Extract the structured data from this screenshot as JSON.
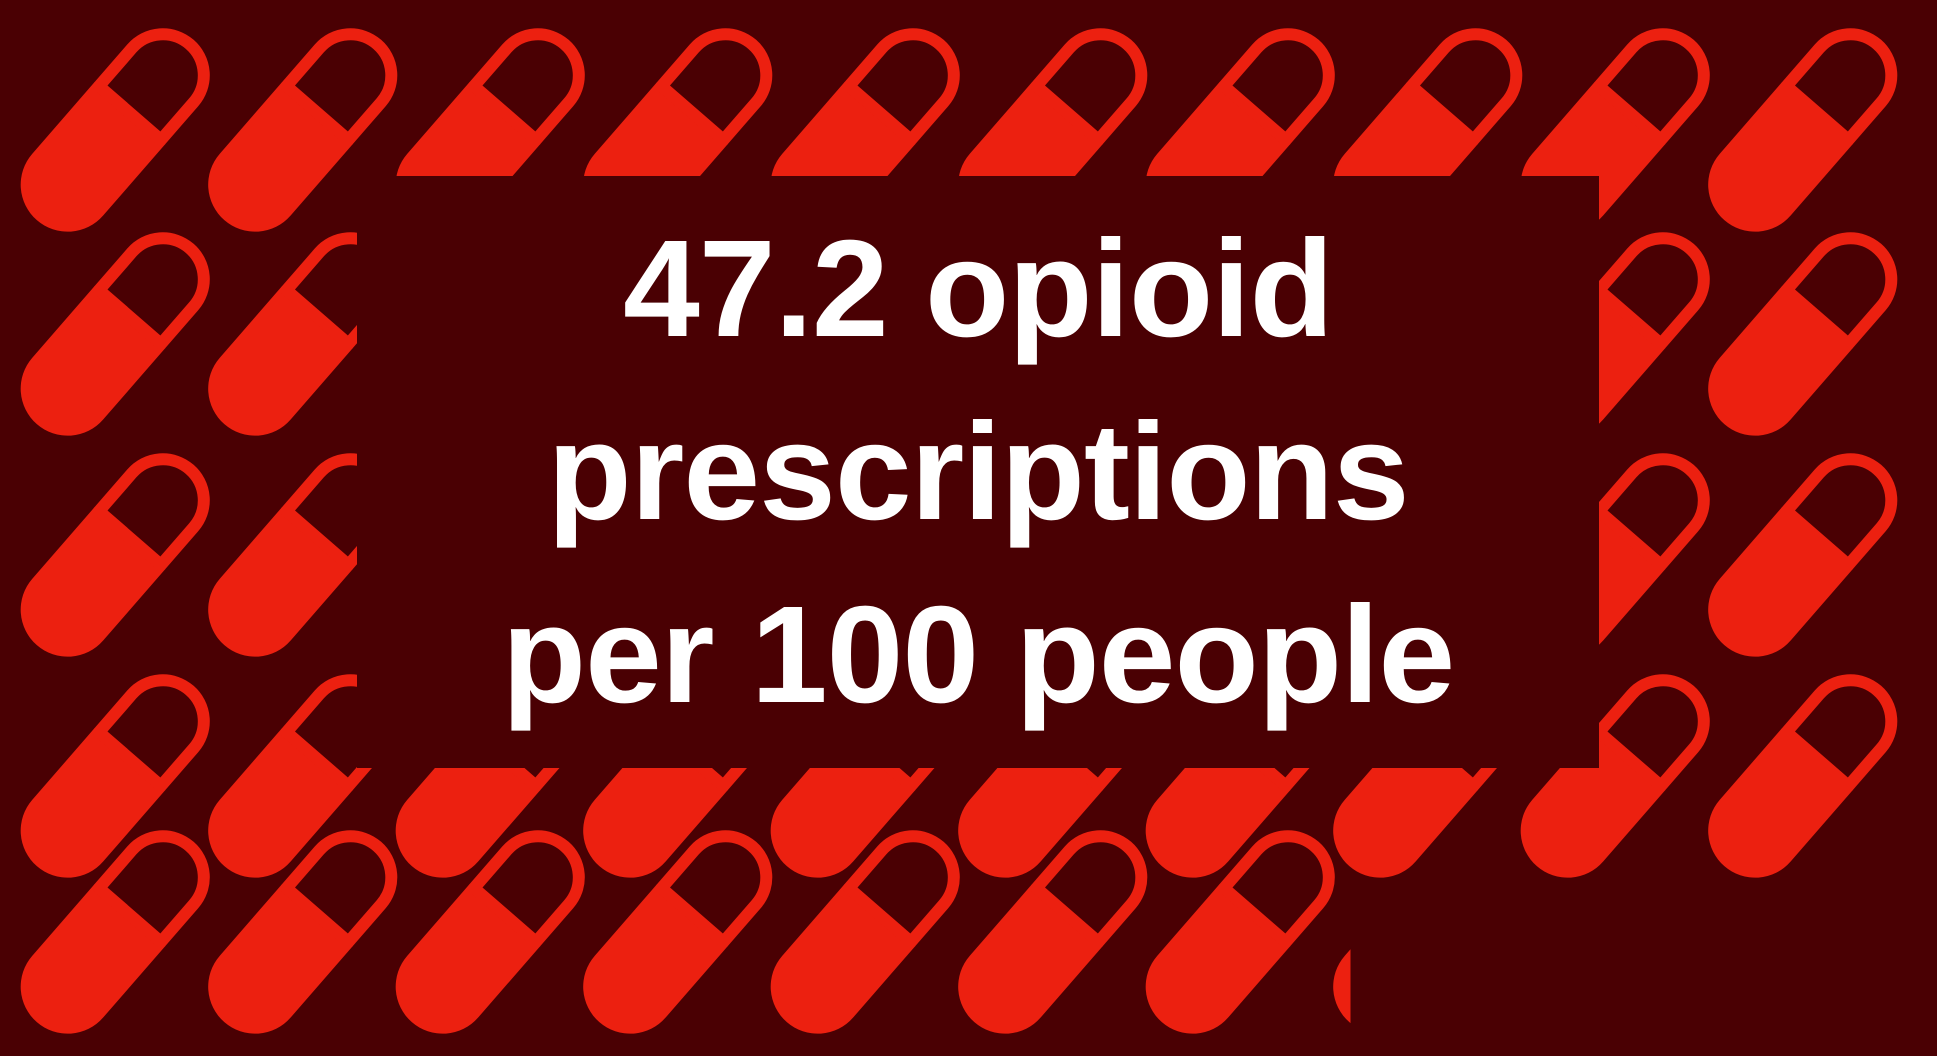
{
  "headline": {
    "line1": "47.2 opioid",
    "line2": "prescriptions",
    "line3": "per 100 people"
  },
  "stat": {
    "value": 47.2,
    "unit": "opioid prescriptions per 100 people"
  },
  "pictogram": {
    "icon": "capsule-pill-icon",
    "count": 47.2,
    "full_icons": 47,
    "partial_fraction": 0.2,
    "columns": 10
  },
  "colors": {
    "background": "#4a0003",
    "pill": "#ec2010",
    "text": "#ffffff"
  }
}
